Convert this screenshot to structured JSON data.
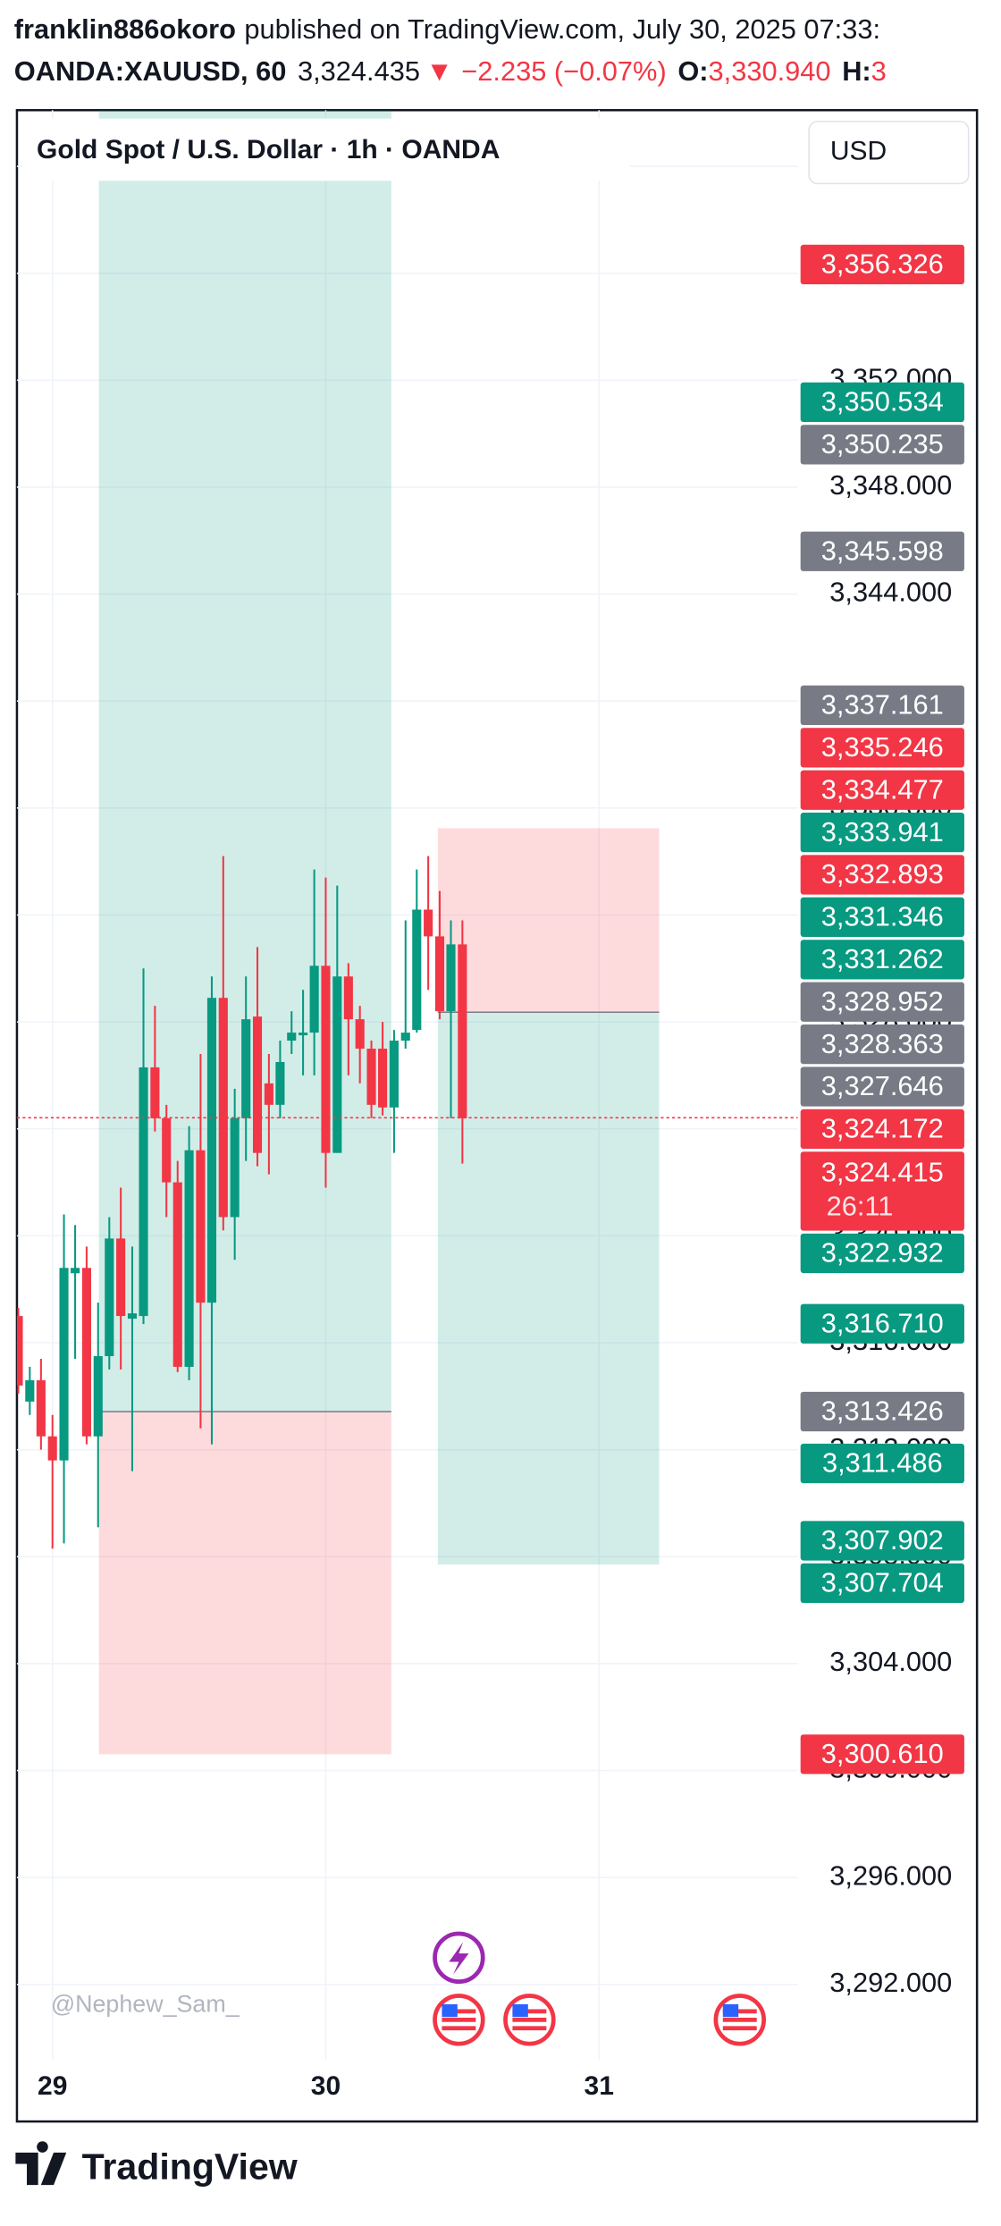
{
  "header": {
    "author": "franklin886okoro",
    "published": "published on TradingView.com, July 30, 2025 07:33:",
    "symbol": "OANDA:XAUUSD, 60",
    "last": "3,324.435",
    "arrow": "▼",
    "change": "−2.235 (−0.07%)",
    "open_key": "O:",
    "open": "3,330.940",
    "high_key": "H:",
    "high": "3"
  },
  "chart_data": {
    "type": "candlestick",
    "title": "Gold Spot / U.S. Dollar · 1h · OANDA",
    "currency": "USD",
    "watermark": "@Nephew_Sam_",
    "x": [
      28.875,
      28.917,
      28.958,
      29,
      29.042,
      29.083,
      29.125,
      29.167,
      29.208,
      29.25,
      29.292,
      29.333,
      29.375,
      29.417,
      29.458,
      29.5,
      29.542,
      29.583,
      29.625,
      29.667,
      29.708,
      29.75,
      29.792,
      29.833,
      29.875,
      29.917,
      29.958,
      30,
      30.042,
      30.083,
      30.125,
      30.167,
      30.208,
      30.25,
      30.292,
      30.333,
      30.375,
      30.417,
      30.458,
      30.5
    ],
    "open": [
      3317.0,
      3313.8,
      3314.6,
      3312.5,
      3311.6,
      3318.6,
      3318.8,
      3312.5,
      3315.5,
      3319.9,
      3316.9,
      3317.0,
      3326.3,
      3324.4,
      3322.0,
      3315.1,
      3323.2,
      3317.5,
      3328.9,
      3320.7,
      3324.4,
      3328.2,
      3325.7,
      3324.9,
      3327.3,
      3327.5,
      3327.6,
      3330.1,
      3323.1,
      3329.7,
      3328.1,
      3327.0,
      3327.0,
      3324.8,
      3327.3,
      3327.7,
      3332.2,
      3331.2,
      3328.4,
      3330.9
    ],
    "high": [
      3317.3,
      3315.1,
      3315.4,
      3313.3,
      3320.8,
      3320.4,
      3319.6,
      3317.5,
      3320.7,
      3321.8,
      3319.6,
      3330.0,
      3328.6,
      3324.9,
      3322.8,
      3324.1,
      3326.8,
      3329.7,
      3334.2,
      3325.5,
      3329.7,
      3330.8,
      3326.8,
      3327.3,
      3328.4,
      3329.2,
      3333.7,
      3333.4,
      3333.1,
      3330.2,
      3328.6,
      3327.3,
      3328.0,
      3327.7,
      3331.8,
      3333.7,
      3334.2,
      3332.9,
      3331.8,
      3331.8
    ],
    "low": [
      3314.1,
      3313.3,
      3312.0,
      3308.3,
      3308.5,
      3315.4,
      3312.2,
      3309.1,
      3315.0,
      3315.0,
      3311.2,
      3316.7,
      3323.9,
      3320.7,
      3314.9,
      3314.6,
      3312.8,
      3312.2,
      3320.2,
      3319.1,
      3322.8,
      3322.6,
      3322.3,
      3324.4,
      3326.8,
      3326.0,
      3326.0,
      3321.8,
      3323.1,
      3326.0,
      3325.7,
      3324.4,
      3324.5,
      3323.1,
      3327.0,
      3327.6,
      3329.2,
      3328.1,
      3324.4,
      3322.7
    ],
    "close": [
      3314.4,
      3314.6,
      3312.5,
      3311.6,
      3318.8,
      3318.8,
      3312.5,
      3315.5,
      3319.9,
      3317.0,
      3317.1,
      3326.3,
      3324.4,
      3322.0,
      3315.1,
      3323.2,
      3317.5,
      3328.9,
      3320.7,
      3324.4,
      3328.1,
      3323.1,
      3324.9,
      3326.5,
      3327.6,
      3327.6,
      3330.1,
      3323.1,
      3329.7,
      3328.1,
      3327.0,
      3324.9,
      3324.8,
      3327.3,
      3327.6,
      3332.2,
      3331.2,
      3328.4,
      3330.9,
      3324.4
    ],
    "up_color": "#089981",
    "down_color": "#f23645",
    "xlim": [
      28.87,
      31.727
    ],
    "xticks": [
      29,
      30,
      31
    ],
    "ylim": [
      3289.2,
      3362.1
    ],
    "yticks": [
      {
        "value": 3292,
        "label": "3,292.000"
      },
      {
        "value": 3296,
        "label": "3,296.000"
      },
      {
        "value": 3300,
        "label": "3,300.000"
      },
      {
        "value": 3304,
        "label": "3,304.000"
      },
      {
        "value": 3308,
        "label": "3,308.000"
      },
      {
        "value": 3312,
        "label": "3,312.000"
      },
      {
        "value": 3316,
        "label": "3,316.000"
      },
      {
        "value": 3320,
        "label": "3,320.000"
      },
      {
        "value": 3324,
        "label": "3,324.000"
      },
      {
        "value": 3328,
        "label": "3,328.000"
      },
      {
        "value": 3332,
        "label": "3,332.000"
      },
      {
        "value": 3336,
        "label": "3,336.000"
      },
      {
        "value": 3340,
        "label": "3,340.000"
      },
      {
        "value": 3344,
        "label": "3,344.000"
      },
      {
        "value": 3348,
        "label": "3,348.000"
      },
      {
        "value": 3352,
        "label": "3,352.000"
      },
      {
        "value": 3356,
        "label": "3,356.000"
      },
      {
        "value": 3360,
        "label": "3,360.000"
      }
    ],
    "grid": true,
    "price_tags": [
      {
        "value": 3356.326,
        "label": "3,356.326",
        "color": "#f23645"
      },
      {
        "value": 3350.534,
        "label": "3,350.534",
        "color": "#089981"
      },
      {
        "value": 3350.235,
        "label": "3,350.235",
        "color": "#787b86"
      },
      {
        "value": 3345.598,
        "label": "3,345.598",
        "color": "#787b86"
      },
      {
        "value": 3337.161,
        "label": "3,337.161",
        "color": "#787b86"
      },
      {
        "value": 3335.246,
        "label": "3,335.246",
        "color": "#f23645"
      },
      {
        "value": 3334.477,
        "label": "3,334.477",
        "color": "#f23645"
      },
      {
        "value": 3333.941,
        "label": "3,333.941",
        "color": "#089981"
      },
      {
        "value": 3332.893,
        "label": "3,332.893",
        "color": "#f23645"
      },
      {
        "value": 3331.346,
        "label": "3,331.346",
        "color": "#089981"
      },
      {
        "value": 3331.262,
        "label": "3,331.262",
        "color": "#089981"
      },
      {
        "value": 3328.952,
        "label": "3,328.952",
        "color": "#787b86"
      },
      {
        "value": 3328.363,
        "label": "3,328.363",
        "color": "#787b86"
      },
      {
        "value": 3327.646,
        "label": "3,327.646",
        "color": "#787b86"
      },
      {
        "value": 3324.415,
        "label": "3,324.415",
        "color": "#f23645",
        "countdown": "26:11"
      },
      {
        "value": 3324.172,
        "label": "3,324.172",
        "color": "#f23645"
      },
      {
        "value": 3322.932,
        "label": "3,322.932",
        "color": "#089981"
      },
      {
        "value": 3316.71,
        "label": "3,316.710",
        "color": "#089981"
      },
      {
        "value": 3313.426,
        "label": "3,313.426",
        "color": "#787b86"
      },
      {
        "value": 3311.486,
        "label": "3,311.486",
        "color": "#089981"
      },
      {
        "value": 3307.902,
        "label": "3,307.902",
        "color": "#089981"
      },
      {
        "value": 3307.704,
        "label": "3,307.704",
        "color": "#089981"
      },
      {
        "value": 3300.61,
        "label": "3,300.610",
        "color": "#f23645"
      }
    ],
    "positions": [
      {
        "start": 29.17,
        "end": 30.24,
        "entry": 3313.426,
        "stop": 3300.61,
        "target": 3362.5
      },
      {
        "start": 30.41,
        "end": 31.22,
        "entry": 3328.363,
        "stop": 3335.246,
        "target": 3307.704
      }
    ]
  },
  "footer": {
    "brand": "TradingView"
  }
}
